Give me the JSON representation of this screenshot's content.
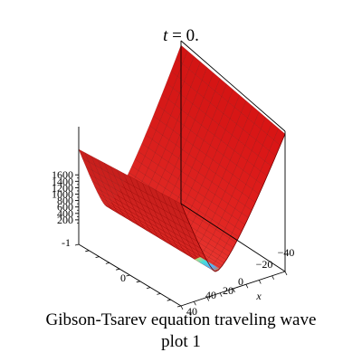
{
  "title": {
    "variable": "t",
    "rest": " = 0."
  },
  "caption": {
    "line1": "Gibson-Tsarev equation  traveling wave",
    "line2": "plot 1"
  },
  "colors": {
    "surface": "#e02424",
    "surface_light": "#ff8a8a",
    "surface_dark": "#8c0c0c",
    "mesh": "#7a0000",
    "box": "#000000",
    "trough_blue": "#4fb5ff",
    "trough_cyan": "#41e6e6",
    "trough_yellow": "#e6e650"
  },
  "chart_data": {
    "type": "surface3d",
    "title": "t = 0.",
    "xlabel": "x",
    "ylabel": "",
    "zlabel": "",
    "x_ticks": [
      -40,
      -20,
      0,
      20,
      40
    ],
    "y_ticks": [
      -1,
      0
    ],
    "y_ticks_partial": [
      "40"
    ],
    "z_ticks": [
      200,
      400,
      600,
      800,
      1000,
      1200,
      1400,
      1600
    ],
    "zlim": [
      0,
      1700
    ],
    "x_range": [
      -40,
      40
    ],
    "surface_profile": {
      "description": "z ≈ x^2, parabolic trough, constant along the other horizontal axis",
      "x": [
        -40,
        -30,
        -20,
        -10,
        0,
        10,
        20,
        30,
        40
      ],
      "z": [
        1600,
        900,
        400,
        100,
        0,
        100,
        400,
        900,
        1600
      ]
    },
    "colormap": "red surface with rainbow (blue-cyan-yellow) near minimum"
  }
}
